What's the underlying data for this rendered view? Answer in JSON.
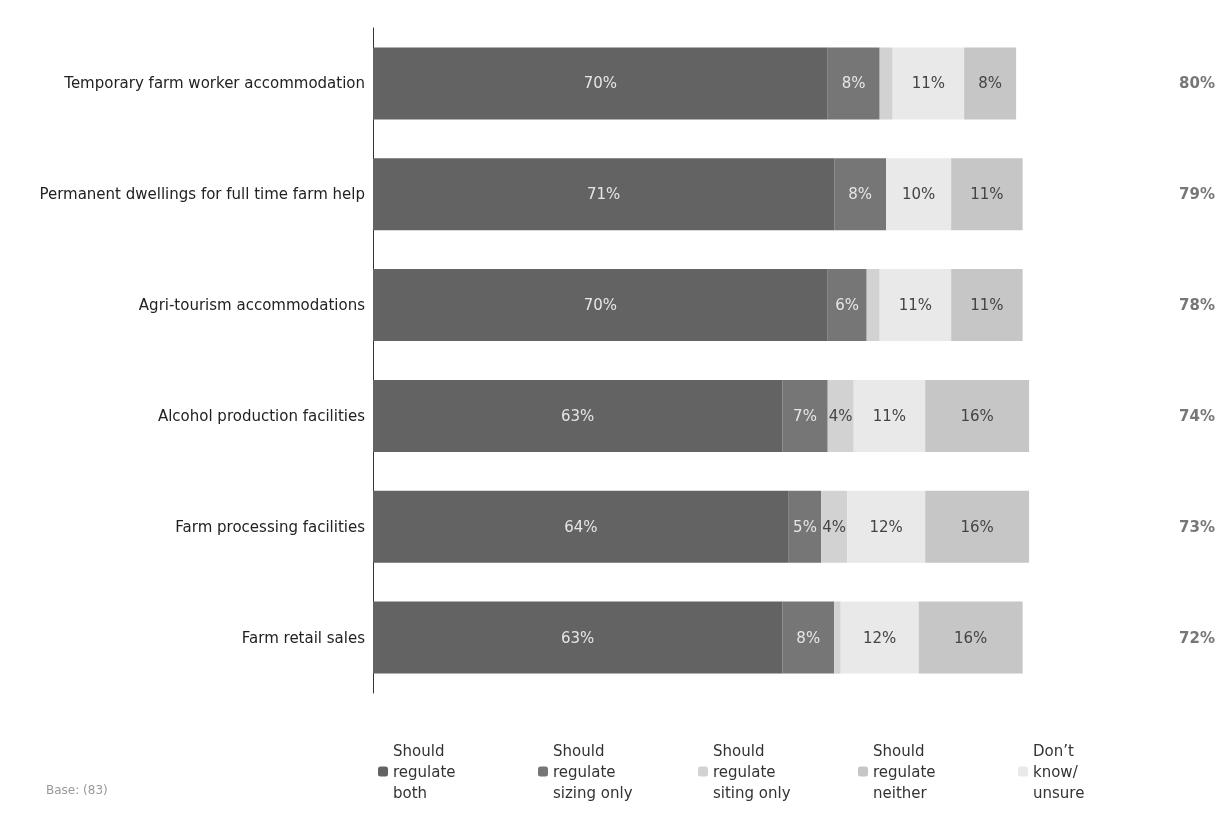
{
  "chart_data": {
    "type": "bar",
    "orientation": "horizontal",
    "stacked": true,
    "legend": "bottom",
    "categories": [
      "Temporary farm worker accommodation",
      "Permanent dwellings for full time farm help",
      "Agri-tourism accommodations",
      "Alcohol production facilities",
      "Farm processing facilities",
      "Farm retail sales"
    ],
    "series": [
      {
        "name": "Should regulate both",
        "color": "#636363",
        "values": [
          70,
          71,
          70,
          63,
          64,
          63
        ],
        "value_labels": [
          "70%",
          "71%",
          "70%",
          "63%",
          "64%",
          "63%"
        ]
      },
      {
        "name": "Should regulate sizing only",
        "color": "#767676",
        "values": [
          8,
          8,
          6,
          7,
          5,
          8
        ],
        "value_labels": [
          "8%",
          "8%",
          "6%",
          "7%",
          "5%",
          "8%"
        ]
      },
      {
        "name": "Should regulate siting only",
        "color": "#d2d2d2",
        "values": [
          2,
          0,
          2,
          4,
          4,
          1
        ],
        "value_labels": [
          null,
          null,
          null,
          "4%",
          "4%",
          null
        ]
      },
      {
        "name": "Don’t know/ unsure",
        "color": "#e9e9e9",
        "values": [
          11,
          10,
          11,
          11,
          12,
          12
        ],
        "value_labels": [
          "11%",
          "10%",
          "11%",
          "11%",
          "12%",
          "12%"
        ]
      },
      {
        "name": "Should regulate neither",
        "color": "#c6c6c6",
        "values": [
          8,
          11,
          11,
          16,
          16,
          16
        ],
        "value_labels": [
          "8%",
          "11%",
          "11%",
          "16%",
          "16%",
          "16%"
        ]
      }
    ],
    "annotations": [
      "80%",
      "79%",
      "78%",
      "74%",
      "73%",
      "72%",
      "Base: (83)"
    ]
  }
}
